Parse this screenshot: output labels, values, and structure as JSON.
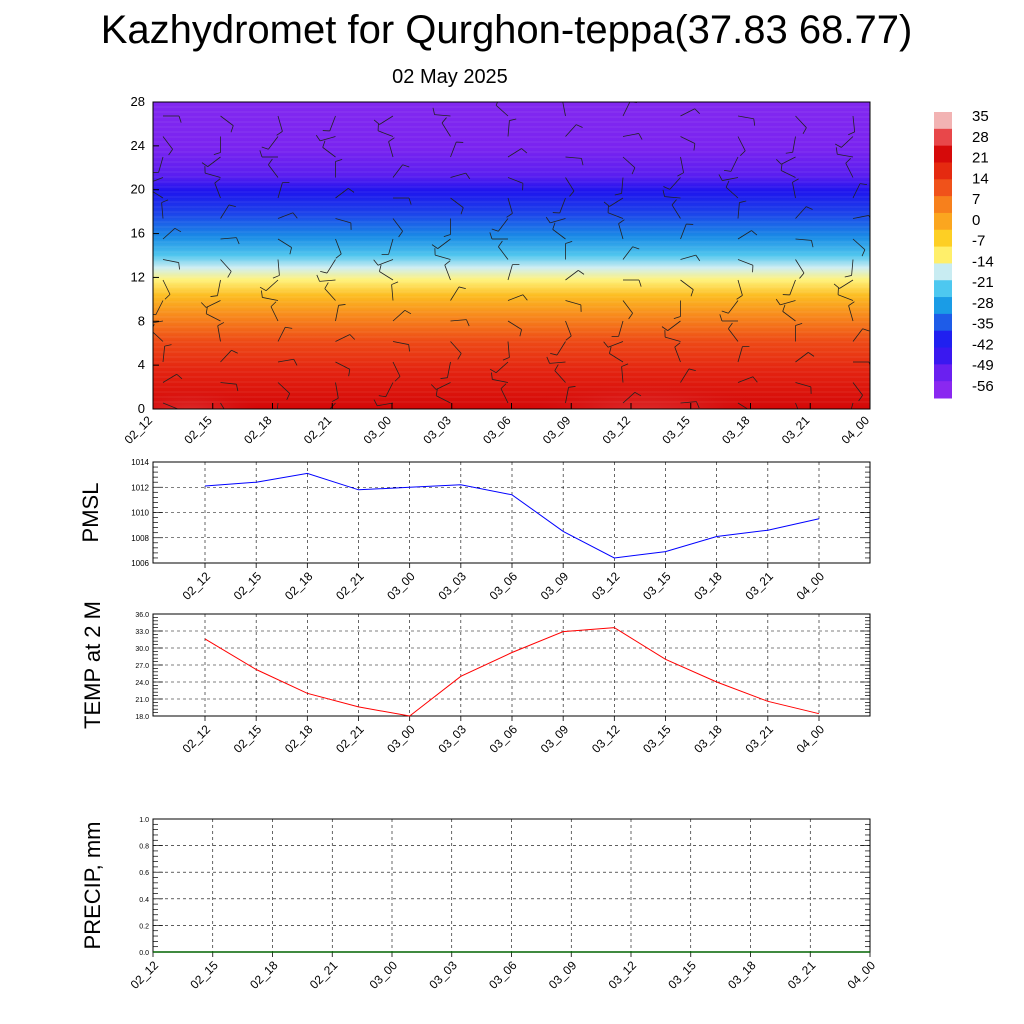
{
  "header": {
    "title": "Kazhydromet for Qurghon-teppa(37.83 68.77)",
    "date": "02 May 2025"
  },
  "chart_data": [
    {
      "type": "heatmap",
      "name": "temperature-cross-section",
      "x_categories": [
        "02_12",
        "02_15",
        "02_18",
        "02_21",
        "03_00",
        "03_03",
        "03_06",
        "03_09",
        "03_12",
        "03_15",
        "03_18",
        "03_21",
        "04_00"
      ],
      "y_ticks": [
        "0",
        "4",
        "8",
        "12",
        "16",
        "20",
        "24",
        "28"
      ],
      "ylim": [
        0,
        28
      ],
      "colorbar_labels": [
        "35",
        "28",
        "21",
        "14",
        "7",
        "0",
        "-7",
        "-14",
        "-21",
        "-28",
        "-35",
        "-42",
        "-49",
        "-56"
      ],
      "colorbar_colors": [
        "#f2b3b3",
        "#e8474a",
        "#d60a0a",
        "#e52a10",
        "#f0521a",
        "#f7801c",
        "#fba61f",
        "#fdcf24",
        "#ffef6a",
        "#c8ecf2",
        "#4dc8f0",
        "#1a9ce6",
        "#1e5ce8",
        "#2020f0",
        "#3a18f0",
        "#6a20f0",
        "#8a28f0"
      ]
    },
    {
      "type": "line",
      "name": "pmsl",
      "ylabel": "PMSL",
      "x": [
        "02_12",
        "02_15",
        "02_18",
        "02_21",
        "03_00",
        "03_03",
        "03_06",
        "03_09",
        "03_12",
        "03_15",
        "03_18",
        "03_21",
        "04_00"
      ],
      "y": [
        1012.1,
        1012.4,
        1013.1,
        1011.8,
        1012.0,
        1012.2,
        1011.4,
        1008.5,
        1006.4,
        1006.9,
        1008.1,
        1008.6,
        1009.5
      ],
      "ylim": [
        1006,
        1014
      ],
      "y_ticks": [
        "1006",
        "1008",
        "1010",
        "1012",
        "1014"
      ],
      "color": "#0000ff",
      "grid": true
    },
    {
      "type": "line",
      "name": "temp-2m",
      "ylabel": "TEMP at 2 M",
      "x": [
        "02_12",
        "02_15",
        "02_18",
        "02_21",
        "03_00",
        "03_03",
        "03_06",
        "03_09",
        "03_12",
        "03_15",
        "03_18",
        "03_21",
        "04_00"
      ],
      "y": [
        31.6,
        26.2,
        22.0,
        19.6,
        18.0,
        25.0,
        29.2,
        32.9,
        33.6,
        28.0,
        24.0,
        20.6,
        18.4
      ],
      "ylim": [
        18,
        36
      ],
      "y_ticks": [
        "18.0",
        "21.0",
        "24.0",
        "27.0",
        "30.0",
        "33.0",
        "36.0"
      ],
      "color": "#ff0000",
      "grid": true
    },
    {
      "type": "line",
      "name": "precip",
      "ylabel": "PRECIP, mm",
      "x": [
        "02_12",
        "02_15",
        "02_18",
        "02_21",
        "03_00",
        "03_03",
        "03_06",
        "03_09",
        "03_12",
        "03_15",
        "03_18",
        "03_21",
        "04_00"
      ],
      "y": [
        0,
        0,
        0,
        0,
        0,
        0,
        0,
        0,
        0,
        0,
        0,
        0,
        0
      ],
      "ylim": [
        0,
        1
      ],
      "y_ticks": [
        "0.0",
        "0.2",
        "0.4",
        "0.6",
        "0.8",
        "1.0"
      ],
      "color": "#006400",
      "grid": true
    }
  ]
}
